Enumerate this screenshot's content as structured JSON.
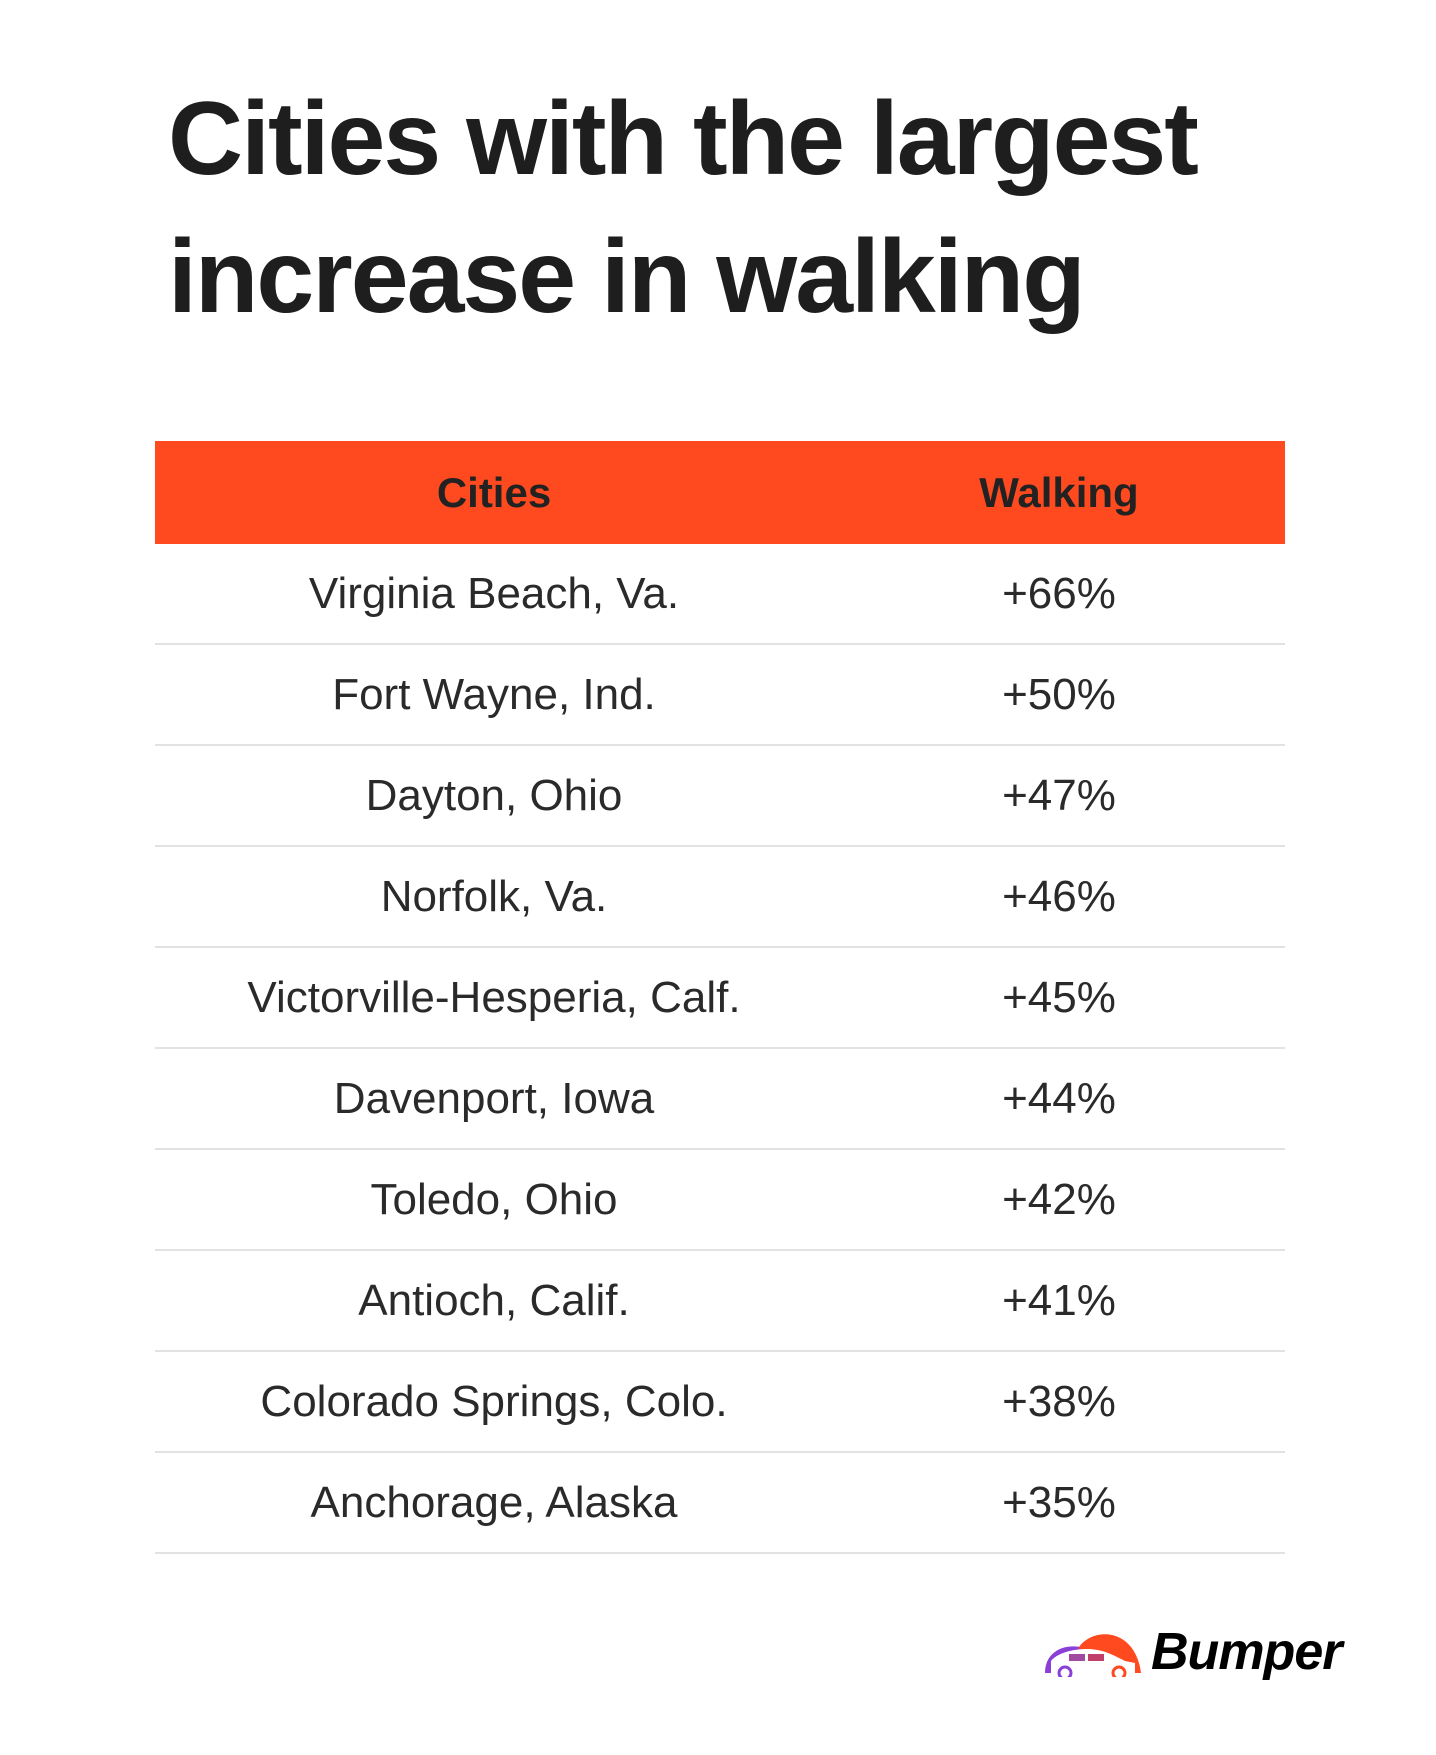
{
  "title": "Cities with the largest increase in walking",
  "table": {
    "headers": [
      "Cities",
      "Walking"
    ],
    "rows": [
      [
        "Virginia Beach, Va.",
        "+66%"
      ],
      [
        "Fort Wayne, Ind.",
        "+50%"
      ],
      [
        "Dayton, Ohio",
        "+47%"
      ],
      [
        "Norfolk, Va.",
        "+46%"
      ],
      [
        "Victorville-Hesperia, Calf.",
        "+45%"
      ],
      [
        "Davenport, Iowa",
        "+44%"
      ],
      [
        "Toledo, Ohio",
        "+42%"
      ],
      [
        "Antioch, Calif.",
        "+41%"
      ],
      [
        "Colorado Springs, Colo.",
        "+38%"
      ],
      [
        "Anchorage, Alaska",
        "+35%"
      ]
    ]
  },
  "brand": {
    "name": "Bumper",
    "accent": "#ff4a1f",
    "secondary": "#8a3fd8"
  }
}
